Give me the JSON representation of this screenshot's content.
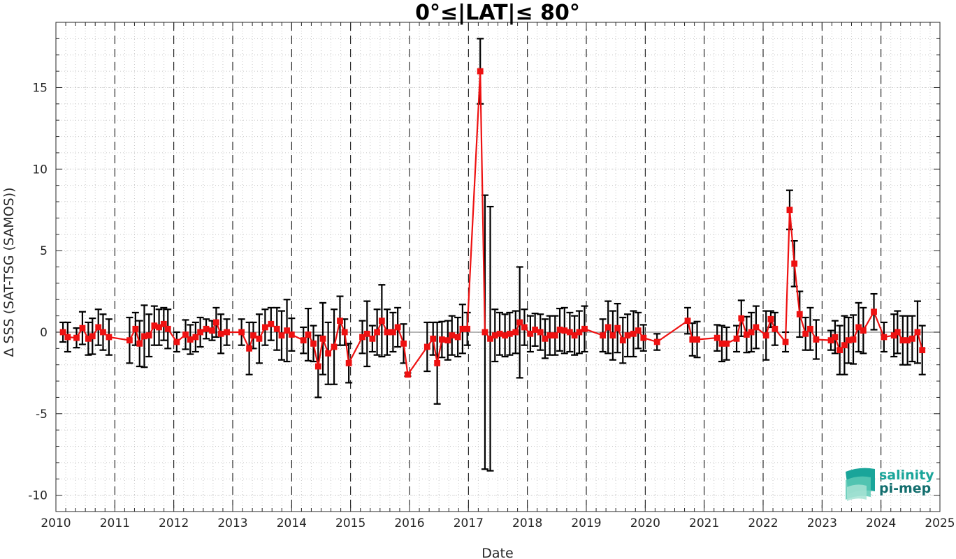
{
  "colors": {
    "series": "#ee1111",
    "errorbar": "#000000",
    "logo_teal": "#1aa59a",
    "logo_dark": "#136e6e"
  },
  "logo": {
    "line1": "salinity",
    "line2": "pi-mep"
  },
  "chart_data": {
    "type": "line",
    "title": "0°≤|LAT|≤ 80°",
    "xlabel": "Date",
    "ylabel": "Δ SSS (SAT-TSG (SAMOS))",
    "xlim": [
      2010,
      2025
    ],
    "ylim": [
      -11,
      19
    ],
    "x_ticks": [
      "2010",
      "2011",
      "2012",
      "2013",
      "2014",
      "2015",
      "2016",
      "2017",
      "2018",
      "2019",
      "2020",
      "2021",
      "2022",
      "2023",
      "2024",
      "2025"
    ],
    "y_ticks": [
      "15",
      "10",
      "5",
      "0",
      "-5",
      "-10"
    ],
    "grid": "dotted minor grid, dashed vertical lines at each year",
    "zero_line": 0,
    "series": [
      {
        "marker": "square",
        "x": [
          2010.12,
          2010.2,
          2010.35,
          2010.45,
          2010.55,
          2010.62,
          2010.72,
          2010.8,
          2010.9,
          2011.25,
          2011.35,
          2011.42,
          2011.5,
          2011.58,
          2011.67,
          2011.75,
          2011.83,
          2011.9,
          2012.05,
          2012.2,
          2012.28,
          2012.37,
          2012.45,
          2012.55,
          2012.65,
          2012.72,
          2012.8,
          2012.9,
          2013.15,
          2013.28,
          2013.35,
          2013.45,
          2013.55,
          2013.65,
          2013.75,
          2013.83,
          2013.92,
          2014.0,
          2014.2,
          2014.28,
          2014.37,
          2014.45,
          2014.53,
          2014.62,
          2014.72,
          2014.82,
          2014.9,
          2014.97,
          2015.2,
          2015.28,
          2015.37,
          2015.45,
          2015.53,
          2015.62,
          2015.72,
          2015.8,
          2015.9,
          2015.97,
          2016.3,
          2016.4,
          2016.47,
          2016.55,
          2016.65,
          2016.72,
          2016.82,
          2016.9,
          2016.98,
          2017.2,
          2017.28,
          2017.37,
          2017.45,
          2017.53,
          2017.62,
          2017.7,
          2017.8,
          2017.87,
          2017.95,
          2018.05,
          2018.13,
          2018.22,
          2018.3,
          2018.38,
          2018.47,
          2018.55,
          2018.63,
          2018.72,
          2018.8,
          2018.88,
          2018.97,
          2019.28,
          2019.37,
          2019.45,
          2019.53,
          2019.62,
          2019.7,
          2019.8,
          2019.88,
          2019.97,
          2020.2,
          2020.72,
          2020.8,
          2020.88,
          2021.22,
          2021.3,
          2021.38,
          2021.55,
          2021.63,
          2021.72,
          2021.8,
          2021.88,
          2022.05,
          2022.13,
          2022.2,
          2022.38,
          2022.45,
          2022.53,
          2022.62,
          2022.72,
          2022.8,
          2022.9,
          2023.15,
          2023.22,
          2023.3,
          2023.38,
          2023.45,
          2023.53,
          2023.62,
          2023.7,
          2023.88,
          2024.05,
          2024.22,
          2024.28,
          2024.37,
          2024.45,
          2024.53,
          2024.62,
          2024.7
        ],
        "y": [
          0.0,
          -0.3,
          -0.35,
          0.25,
          -0.4,
          -0.25,
          0.3,
          0.0,
          -0.3,
          -0.5,
          0.2,
          -0.7,
          -0.25,
          -0.2,
          0.4,
          0.3,
          0.5,
          0.2,
          -0.6,
          -0.15,
          -0.45,
          -0.3,
          0.0,
          0.2,
          0.1,
          0.6,
          -0.1,
          0.0,
          0.0,
          -1.0,
          -0.2,
          -0.4,
          0.3,
          0.5,
          0.2,
          -0.2,
          0.1,
          -0.15,
          -0.5,
          -0.15,
          -0.7,
          -2.1,
          -0.4,
          -1.3,
          -0.9,
          0.7,
          0.0,
          -1.9,
          -0.3,
          -0.1,
          -0.4,
          0.0,
          0.7,
          0.0,
          0.0,
          0.3,
          -0.7,
          -2.6,
          -0.9,
          -0.4,
          -1.9,
          -0.45,
          -0.5,
          -0.2,
          -0.3,
          0.2,
          0.2,
          16.0,
          0.0,
          -0.4,
          -0.2,
          -0.1,
          -0.2,
          -0.1,
          0.0,
          0.6,
          0.3,
          -0.1,
          0.15,
          0.0,
          -0.4,
          -0.2,
          -0.2,
          0.15,
          0.1,
          0.0,
          -0.2,
          0.0,
          0.2,
          -0.2,
          0.3,
          -0.2,
          0.25,
          -0.5,
          -0.2,
          -0.1,
          0.1,
          -0.35,
          -0.6,
          0.7,
          -0.45,
          -0.45,
          -0.35,
          -0.7,
          -0.7,
          -0.4,
          0.85,
          -0.15,
          0.0,
          0.3,
          -0.2,
          0.8,
          0.2,
          -0.6,
          7.5,
          4.2,
          1.1,
          -0.1,
          0.2,
          -0.45,
          -0.5,
          -0.3,
          -1.1,
          -0.8,
          -0.5,
          -0.45,
          0.3,
          0.1,
          1.25,
          -0.3,
          -0.2,
          0.0,
          -0.5,
          -0.5,
          -0.4,
          0.0,
          -1.1
        ],
        "err": [
          0.6,
          0.9,
          0.6,
          1.0,
          1.0,
          1.1,
          1.1,
          1.1,
          1.1,
          1.4,
          1.0,
          1.4,
          1.9,
          1.3,
          1.2,
          1.1,
          1.0,
          1.2,
          0.6,
          0.9,
          0.9,
          0.9,
          0.9,
          0.6,
          0.6,
          0.9,
          1.2,
          0.8,
          0.8,
          1.6,
          0.8,
          1.5,
          1.1,
          1.0,
          1.3,
          1.5,
          1.9,
          1.0,
          0.8,
          1.6,
          1.1,
          1.9,
          2.2,
          1.9,
          2.3,
          1.5,
          0.8,
          1.2,
          1.0,
          2.0,
          0.8,
          1.4,
          2.2,
          1.4,
          1.2,
          1.2,
          1.2,
          0.1,
          1.5,
          1.0,
          2.5,
          1.1,
          1.2,
          1.2,
          1.2,
          1.5,
          1.0,
          2.0,
          8.4,
          8.1,
          1.6,
          1.3,
          1.3,
          1.3,
          1.3,
          3.4,
          1.1,
          1.1,
          1.0,
          1.1,
          1.2,
          1.2,
          1.2,
          1.3,
          1.4,
          1.2,
          1.2,
          1.3,
          1.4,
          1.0,
          1.6,
          1.5,
          1.5,
          1.4,
          1.3,
          1.4,
          1.1,
          0.8,
          0.5,
          0.8,
          1.0,
          1.1,
          0.8,
          1.1,
          1.0,
          0.8,
          1.1,
          1.1,
          1.2,
          1.3,
          1.5,
          0.5,
          1.0,
          0.6,
          1.2,
          1.4,
          1.4,
          1.0,
          1.3,
          1.2,
          0.6,
          1.0,
          1.5,
          1.8,
          1.4,
          1.5,
          1.5,
          1.4,
          1.1,
          0.9,
          1.3,
          1.3,
          1.5,
          1.5,
          1.4,
          1.9,
          1.5
        ]
      }
    ]
  }
}
